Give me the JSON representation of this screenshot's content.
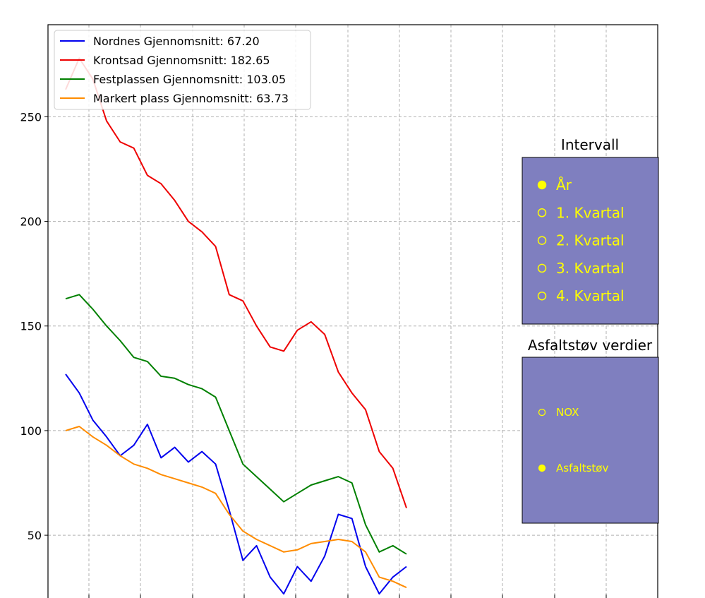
{
  "chart_data": {
    "type": "line",
    "title": "",
    "xlabel": "",
    "ylabel": "",
    "yticks": [
      50,
      100,
      150,
      200,
      250
    ],
    "ylim": [
      20,
      294
    ],
    "xlim": [
      0,
      100
    ],
    "grid": true,
    "legend_position": "top-left",
    "series": [
      {
        "name": "Nordnes Gjennomsnitt: 67.20",
        "color": "#0000ee",
        "x": [
          0,
          4,
          8,
          12,
          16,
          20,
          24,
          28,
          32,
          36,
          40,
          44,
          48,
          52,
          56,
          60,
          64,
          68,
          72,
          76,
          80,
          84,
          88,
          92,
          96,
          100
        ],
        "y": [
          127,
          118,
          105,
          97,
          88,
          93,
          103,
          87,
          92,
          85,
          90,
          84,
          62,
          38,
          45,
          30,
          22,
          35,
          28,
          40,
          60,
          58,
          35,
          22,
          30,
          35
        ]
      },
      {
        "name": "Krontsad Gjennomsnitt: 182.65",
        "color": "#ee0000",
        "x": [
          0,
          4,
          8,
          12,
          16,
          20,
          24,
          28,
          32,
          36,
          40,
          44,
          48,
          52,
          56,
          60,
          64,
          68,
          72,
          76,
          80,
          84,
          88,
          92,
          96,
          100
        ],
        "y": [
          263,
          278,
          268,
          248,
          238,
          235,
          222,
          218,
          210,
          200,
          195,
          188,
          165,
          162,
          150,
          140,
          138,
          148,
          152,
          146,
          128,
          118,
          110,
          90,
          82,
          63
        ]
      },
      {
        "name": "Festplassen Gjennomsnitt: 103.05",
        "color": "#008000",
        "x": [
          0,
          4,
          8,
          12,
          16,
          20,
          24,
          28,
          32,
          36,
          40,
          44,
          48,
          52,
          56,
          60,
          64,
          68,
          72,
          76,
          80,
          84,
          88,
          92,
          96,
          100
        ],
        "y": [
          163,
          165,
          158,
          150,
          143,
          135,
          133,
          126,
          125,
          122,
          120,
          116,
          100,
          84,
          78,
          72,
          66,
          70,
          74,
          76,
          78,
          75,
          55,
          42,
          45,
          41
        ]
      },
      {
        "name": "Markert plass Gjennomsnitt: 63.73",
        "color": "#ff8c00",
        "x": [
          0,
          4,
          8,
          12,
          16,
          20,
          24,
          28,
          32,
          36,
          40,
          44,
          48,
          52,
          56,
          60,
          64,
          68,
          72,
          76,
          80,
          84,
          88,
          92,
          96,
          100
        ],
        "y": [
          100,
          102,
          97,
          93,
          88,
          84,
          82,
          79,
          77,
          75,
          73,
          70,
          60,
          52,
          48,
          45,
          42,
          43,
          46,
          47,
          48,
          47,
          42,
          30,
          28,
          25
        ]
      }
    ]
  },
  "legend": {
    "items": [
      {
        "label": "Nordnes Gjennomsnitt: 67.20",
        "color": "#0000ee"
      },
      {
        "label": "Krontsad Gjennomsnitt: 182.65",
        "color": "#ee0000"
      },
      {
        "label": "Festplassen Gjennomsnitt: 103.05",
        "color": "#008000"
      },
      {
        "label": "Markert plass Gjennomsnitt: 63.73",
        "color": "#ff8c00"
      }
    ]
  },
  "interval_panel": {
    "title": "Intervall",
    "options": [
      "År",
      "1. Kvartal",
      "2. Kvartal",
      "3. Kvartal",
      "4. Kvartal"
    ],
    "selected_index": 0
  },
  "value_panel": {
    "title": "Asfaltstøv verdier",
    "options": [
      "NOX",
      "Asfaltstøv"
    ],
    "selected_index": 1
  },
  "colors": {
    "panel_bg": "#7f7fbf",
    "radio_color": "#ffff00",
    "grid": "#b0b0b0"
  }
}
